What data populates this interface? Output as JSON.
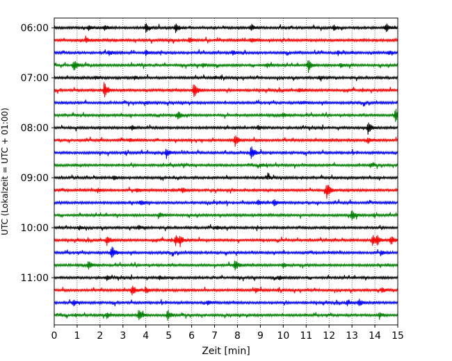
{
  "chart_data": {
    "type": "line",
    "chart_kind": "helicorder",
    "title": "",
    "xlabel": "Zeit  [min]",
    "ylabel": "UTC (Lokalzeit = UTC + 01:00)",
    "xlim": [
      0,
      15
    ],
    "x_ticks": [
      "0",
      "1",
      "2",
      "3",
      "4",
      "5",
      "6",
      "7",
      "8",
      "9",
      "10",
      "11",
      "12",
      "13",
      "14",
      "15"
    ],
    "y_tick_labels": [
      "06:00",
      "07:00",
      "08:00",
      "09:00",
      "10:00",
      "11:00"
    ],
    "grid": "vertical dotted lines at each minute",
    "trace_colors": [
      "#000000",
      "#ff0000",
      "#0000ff",
      "#008000"
    ],
    "trace_start_times": [
      "06:00",
      "06:15",
      "06:30",
      "06:45",
      "07:00",
      "07:15",
      "07:30",
      "07:45",
      "08:00",
      "08:15",
      "08:30",
      "08:45",
      "09:00",
      "09:15",
      "09:30",
      "09:45",
      "10:00",
      "10:15",
      "10:30",
      "10:45",
      "11:00",
      "11:15",
      "11:30",
      "11:45"
    ],
    "events": [
      [
        [
          1.5,
          0.8
        ],
        [
          2.2,
          1.0
        ],
        [
          4.0,
          1.5
        ],
        [
          5.3,
          1.6
        ],
        [
          8.6,
          1.2
        ],
        [
          12.2,
          1.0
        ],
        [
          14.5,
          1.6
        ]
      ],
      [
        [
          1.4,
          1.0
        ],
        [
          5.9,
          0.9
        ],
        [
          8.6,
          0.8
        ]
      ],
      [
        [
          2.4,
          0.8
        ],
        [
          4.0,
          0.9
        ],
        [
          7.8,
          0.7
        ],
        [
          12.4,
          0.7
        ],
        [
          14.6,
          0.7
        ]
      ],
      [
        [
          0.85,
          2.0
        ],
        [
          6.5,
          0.8
        ],
        [
          9.3,
          0.8
        ],
        [
          11.1,
          2.1
        ],
        [
          12.5,
          0.8
        ]
      ],
      [
        [
          1.8,
          0.6
        ],
        [
          3.5,
          0.6
        ],
        [
          7.0,
          0.6
        ],
        [
          11.6,
          0.6
        ]
      ],
      [
        [
          2.2,
          2.5
        ],
        [
          6.1,
          3.5
        ],
        [
          10.7,
          0.8
        ]
      ],
      [
        [
          4.0,
          0.5
        ],
        [
          10.8,
          0.6
        ]
      ],
      [
        [
          5.4,
          1.4
        ],
        [
          10.0,
          0.8
        ],
        [
          14.9,
          2.5
        ]
      ],
      [
        [
          3.4,
          0.8
        ],
        [
          8.9,
          0.8
        ],
        [
          13.7,
          2.5
        ]
      ],
      [
        [
          3.3,
          0.6
        ],
        [
          7.9,
          2.0
        ],
        [
          13.7,
          1.0
        ]
      ],
      [
        [
          4.9,
          1.8
        ],
        [
          8.6,
          2.8
        ]
      ],
      [
        [
          9.0,
          0.7
        ],
        [
          13.8,
          0.7
        ]
      ],
      [
        [
          2.6,
          0.7
        ],
        [
          9.3,
          0.7
        ]
      ],
      [
        [
          1.9,
          0.8
        ],
        [
          3.6,
          0.7
        ],
        [
          5.6,
          0.7
        ],
        [
          11.9,
          3.2
        ]
      ],
      [
        [
          3.8,
          0.7
        ],
        [
          8.9,
          1.0
        ],
        [
          9.6,
          1.3
        ]
      ],
      [
        [
          4.6,
          0.7
        ],
        [
          13.0,
          1.9
        ]
      ],
      [
        [
          1.1,
          0.7
        ],
        [
          3.7,
          0.7
        ],
        [
          7.1,
          0.7
        ]
      ],
      [
        [
          2.3,
          1.8
        ],
        [
          5.3,
          1.8
        ],
        [
          5.5,
          1.2
        ],
        [
          13.9,
          2.0
        ],
        [
          14.1,
          1.6
        ],
        [
          14.7,
          1.7
        ]
      ],
      [
        [
          2.5,
          2.6
        ],
        [
          14.3,
          0.8
        ]
      ],
      [
        [
          1.5,
          1.4
        ],
        [
          7.9,
          2.0
        ],
        [
          10.0,
          0.8
        ]
      ],
      [
        [
          2.3,
          0.8
        ],
        [
          4.6,
          0.7
        ],
        [
          9.8,
          0.7
        ]
      ],
      [
        [
          3.4,
          1.8
        ],
        [
          4.0,
          1.0
        ],
        [
          8.8,
          0.8
        ],
        [
          14.3,
          0.8
        ]
      ],
      [
        [
          0.85,
          1.0
        ],
        [
          6.7,
          0.7
        ],
        [
          12.8,
          1.0
        ],
        [
          13.3,
          1.2
        ]
      ],
      [
        [
          2.3,
          1.0
        ],
        [
          3.7,
          2.3
        ],
        [
          4.95,
          1.8
        ],
        [
          14.2,
          0.8
        ]
      ]
    ]
  }
}
